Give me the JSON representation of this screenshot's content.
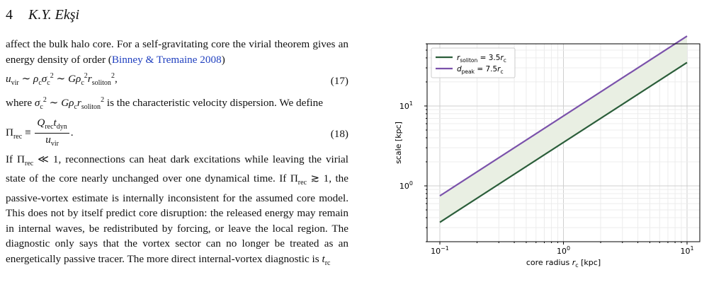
{
  "header": {
    "page_number": "4",
    "author": "K.Y. Ekşi"
  },
  "text": {
    "p1_a": "affect the bulk halo core. For a self-gravitating core the virial theorem gives an energy density of order (",
    "p1_cite": "Binney & Tremaine 2008",
    "p1_b": ")",
    "eq17_no": "(17)",
    "p2_a": "where ",
    "p2_b": " is the characteristic velocity dispersion. We define",
    "eq18_no": "(18)",
    "p3": "reconnections can heat dark excitations while leaving the virial state of the core nearly unchanged over one dynamical time. If",
    "p4": "the passive-vortex estimate is internally inconsistent for the assumed core model. This does not by itself predict core disruption: the released energy may remain in internal waves, be redistributed by forcing, or leave the local region. The diagnostic only says that the vortex sector can no longer be treated as an energetically passive tracer. The more direct internal-vortex diagnostic is"
  },
  "chart_data": {
    "type": "line",
    "xscale": "log",
    "yscale": "log",
    "xlim": [
      0.1,
      10
    ],
    "ylim": [
      0.2,
      60
    ],
    "xlabel": "core radius r_c [kpc]",
    "ylabel": "scale [kpc]",
    "xticks": [
      "10^-1",
      "10^0",
      "10^1"
    ],
    "yticks": [
      "10^0",
      "10^1"
    ],
    "grid": true,
    "legend": "top-left",
    "shaded_between": true,
    "x": [
      0.1,
      10
    ],
    "series": [
      {
        "name": "r_soliton = 3.5r_c",
        "values": [
          0.35,
          35
        ],
        "color": "#2b5e3a"
      },
      {
        "name": "d_peak = 7.5r_c",
        "values": [
          0.75,
          75
        ],
        "color": "#7b52ab"
      }
    ],
    "fill_color": "#e9efe3"
  }
}
